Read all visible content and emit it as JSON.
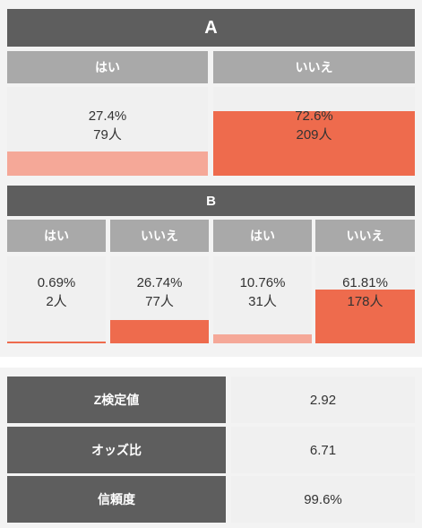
{
  "colors": {
    "bar_accent": "#ee6b4d",
    "bar_light": "#f5a898",
    "header_dark": "#5e5e5e",
    "header_gray": "#a9a9a9",
    "cell_bg": "#f0f0f0"
  },
  "group_a": {
    "title": "A",
    "cells": [
      {
        "header": "はい",
        "percent": "27.4%",
        "count": "79人",
        "fraction": 0.274
      },
      {
        "header": "いいえ",
        "percent": "72.6%",
        "count": "209人",
        "fraction": 0.726
      }
    ]
  },
  "group_b": {
    "title": "B",
    "cells": [
      {
        "header": "はい",
        "percent": "0.69%",
        "count": "2人",
        "fraction": 0.0069
      },
      {
        "header": "いいえ",
        "percent": "26.74%",
        "count": "77人",
        "fraction": 0.2674
      },
      {
        "header": "はい",
        "percent": "10.76%",
        "count": "31人",
        "fraction": 0.1076
      },
      {
        "header": "いいえ",
        "percent": "61.81%",
        "count": "178人",
        "fraction": 0.6181
      }
    ]
  },
  "stats": [
    {
      "label": "Z検定値",
      "value": "2.92"
    },
    {
      "label": "オッズ比",
      "value": "6.71"
    },
    {
      "label": "信頼度",
      "value": "99.6%"
    }
  ]
}
